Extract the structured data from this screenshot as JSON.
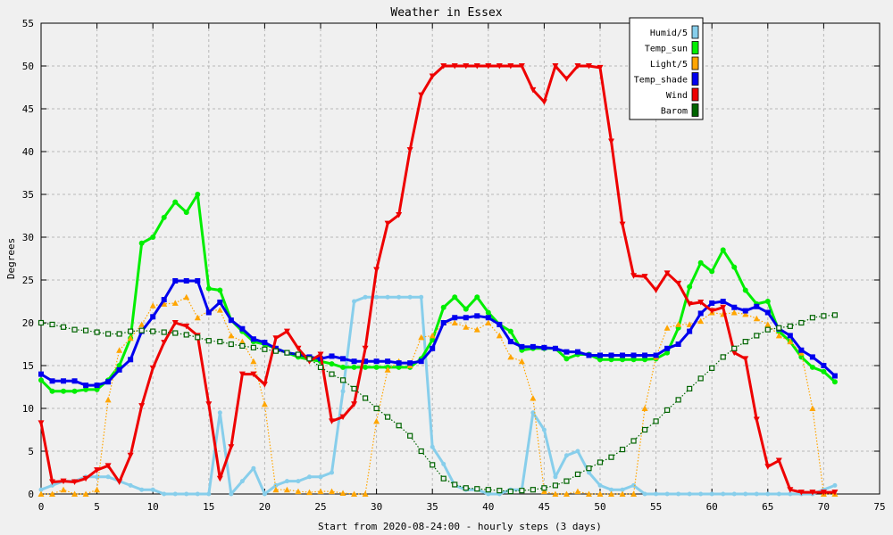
{
  "chart_data": {
    "type": "line",
    "title": "Weather in Essex",
    "xlabel": "Start from 2020-08-24:00 - hourly steps (3 days)",
    "ylabel": "Degrees",
    "xlim": [
      0,
      75
    ],
    "ylim": [
      0,
      55
    ],
    "x_ticks": [
      0,
      5,
      10,
      15,
      20,
      25,
      30,
      35,
      40,
      45,
      50,
      55,
      60,
      65,
      70,
      75
    ],
    "y_ticks": [
      0,
      5,
      10,
      15,
      20,
      25,
      30,
      35,
      40,
      45,
      50,
      55
    ],
    "grid": true,
    "legend_position": "top-right",
    "series": [
      {
        "name": "Humid/5",
        "color": "#87ceeb",
        "marker": "circle-small",
        "values": [
          0.5,
          1,
          1.5,
          1.5,
          2,
          2,
          2,
          1.5,
          1,
          0.5,
          0.5,
          0,
          0,
          0,
          0,
          0,
          9.5,
          0,
          1.5,
          3,
          0,
          1,
          1.5,
          1.5,
          2,
          2,
          2.5,
          12,
          22.5,
          23,
          23,
          23,
          23,
          23,
          23,
          5.5,
          3.5,
          1,
          0.5,
          0.5,
          0,
          0,
          0.5,
          0.5,
          9.5,
          7.5,
          2,
          4.5,
          5,
          2.5,
          1,
          0.5,
          0.5,
          1,
          0,
          0,
          0,
          0,
          0,
          0,
          0,
          0,
          0,
          0,
          0,
          0,
          0,
          0,
          0,
          0,
          0.5,
          1
        ]
      },
      {
        "name": "Temp_sun",
        "color": "#00ee00",
        "marker": "circle",
        "values": [
          13.3,
          12,
          12,
          12,
          12.2,
          12.2,
          13.3,
          15,
          18.2,
          29.3,
          30,
          32.3,
          34.1,
          32.9,
          35,
          24,
          23.8,
          20.3,
          19,
          17.8,
          17.5,
          17,
          16.5,
          16,
          15.7,
          15.5,
          15.2,
          14.8,
          14.8,
          14.8,
          14.8,
          14.8,
          14.8,
          14.8,
          15.8,
          18,
          21.8,
          23,
          21.6,
          23,
          21.2,
          19.8,
          19,
          16.8,
          17,
          17,
          17,
          15.8,
          16.3,
          16.3,
          15.7,
          15.7,
          15.7,
          15.7,
          15.7,
          15.8,
          16.5,
          19.4,
          24.2,
          27,
          26,
          28.5,
          26.5,
          23.8,
          22.2,
          22.5,
          19,
          17.8,
          16,
          14.8,
          14.3,
          13.1
        ]
      },
      {
        "name": "Light/5",
        "color": "#ffa500",
        "marker": "triangle-up",
        "values": [
          0,
          0,
          0.5,
          0,
          0,
          0.5,
          11,
          16.8,
          18.2,
          19.8,
          22,
          22.2,
          22.3,
          23,
          20.6,
          21.4,
          21.5,
          18.5,
          17.8,
          15.5,
          10.5,
          0.5,
          0.5,
          0.3,
          0.2,
          0.3,
          0.3,
          0.1,
          0,
          0,
          8.5,
          14.5,
          15.5,
          15,
          18.3,
          18.5,
          20,
          20,
          19.5,
          19.2,
          20,
          18.5,
          16,
          15.5,
          11.2,
          0.3,
          0,
          0,
          0.3,
          0,
          0,
          0,
          0,
          0,
          10,
          16,
          19.4,
          19.8,
          19.8,
          20.2,
          21.2,
          21,
          21.2,
          21,
          20.5,
          19.8,
          18.5,
          17.8,
          16.5,
          10,
          0,
          0
        ]
      },
      {
        "name": "Temp_shade",
        "color": "#0000ee",
        "marker": "square",
        "values": [
          14,
          13.2,
          13.2,
          13.2,
          12.7,
          12.7,
          13.1,
          14.5,
          15.7,
          19,
          20.7,
          22.7,
          24.9,
          24.9,
          24.9,
          21.2,
          22.4,
          20.3,
          19.3,
          18.1,
          17.7,
          17,
          16.5,
          16.3,
          16,
          15.8,
          16.1,
          15.8,
          15.5,
          15.5,
          15.5,
          15.5,
          15.3,
          15.3,
          15.5,
          17,
          20,
          20.6,
          20.6,
          20.8,
          20.6,
          19.8,
          17.8,
          17.2,
          17.2,
          17.1,
          17,
          16.6,
          16.6,
          16.2,
          16.2,
          16.2,
          16.2,
          16.2,
          16.2,
          16.2,
          17,
          17.5,
          19,
          21.1,
          22.3,
          22.5,
          21.8,
          21.4,
          21.9,
          21.2,
          19.3,
          18.5,
          16.8,
          16,
          15,
          13.8
        ]
      },
      {
        "name": "Wind",
        "color": "#ee0000",
        "marker": "triangle-down",
        "values": [
          8.3,
          1.4,
          1.5,
          1.4,
          1.8,
          2.8,
          3.3,
          1.4,
          4.5,
          10.3,
          14.7,
          17.7,
          20,
          19.6,
          18.5,
          10.5,
          1.8,
          5.5,
          14,
          14,
          12.8,
          18.2,
          19,
          17,
          15.5,
          16.3,
          8.5,
          9,
          10.5,
          17,
          26.2,
          31.6,
          32.6,
          40.2,
          46.6,
          48.8,
          50,
          50,
          50,
          50,
          50,
          50,
          50,
          50,
          47.2,
          45.8,
          50,
          48.5,
          50,
          50,
          49.8,
          41.2,
          31.5,
          25.5,
          25.4,
          23.8,
          25.8,
          24.6,
          22.2,
          22.4,
          21.4,
          21.8,
          16.5,
          15.8,
          8.7,
          3.2,
          3.9,
          0.5,
          0.2,
          0.2,
          0.2,
          0.2
        ]
      },
      {
        "name": "Barom",
        "color": "#006400",
        "marker": "square-open",
        "values": [
          20,
          19.8,
          19.5,
          19.2,
          19.1,
          18.9,
          18.7,
          18.7,
          19,
          19.1,
          19,
          18.9,
          18.8,
          18.6,
          18.3,
          17.9,
          17.8,
          17.5,
          17.3,
          17.1,
          16.9,
          16.7,
          16.5,
          16.3,
          15.8,
          14.8,
          14,
          13.3,
          12.3,
          11.2,
          10,
          9,
          8,
          6.8,
          5,
          3.4,
          1.8,
          1.1,
          0.7,
          0.6,
          0.5,
          0.4,
          0.3,
          0.4,
          0.5,
          0.7,
          1,
          1.5,
          2.3,
          3,
          3.7,
          4.3,
          5.2,
          6.2,
          7.5,
          8.5,
          9.8,
          11,
          12.3,
          13.5,
          14.7,
          16,
          17,
          17.8,
          18.5,
          19.2,
          19.4,
          19.6,
          20,
          20.6,
          20.8,
          20.9
        ]
      }
    ]
  }
}
